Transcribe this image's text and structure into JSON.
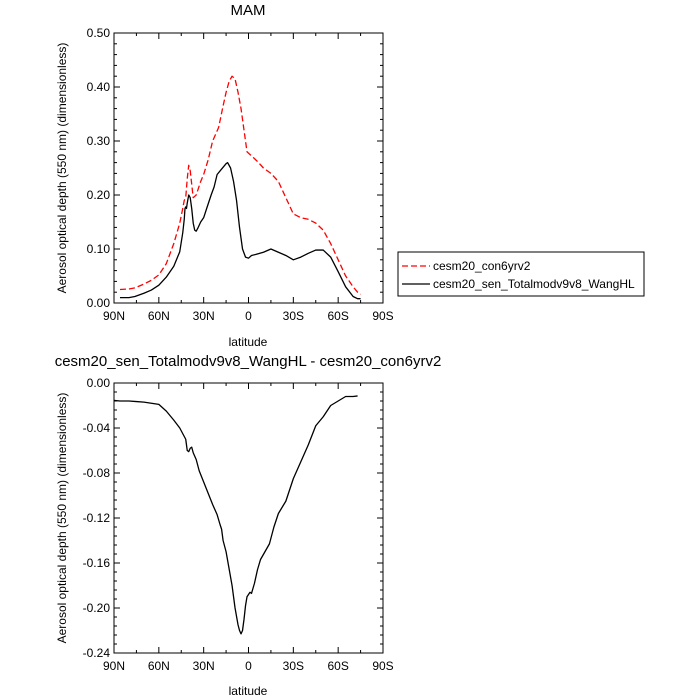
{
  "chart_data": [
    {
      "type": "line",
      "title": "MAM",
      "xlabel": "latitude",
      "ylabel": "Aerosol optical depth (550 nm) (dimensionless)",
      "xlim": [
        90,
        -90
      ],
      "ylim": [
        0,
        0.5
      ],
      "x_ticks": [
        "90N",
        "60N",
        "30N",
        "0",
        "30S",
        "60S",
        "90S"
      ],
      "y_ticks": [
        "0.00",
        "0.10",
        "0.20",
        "0.30",
        "0.40",
        "0.50"
      ],
      "legend": "right",
      "series": [
        {
          "name": "cesm20_con6yrv2",
          "color": "#ff0000",
          "dash": "dashed",
          "points": [
            [
              86,
              0.025
            ],
            [
              80,
              0.026
            ],
            [
              76,
              0.028
            ],
            [
              70,
              0.035
            ],
            [
              65,
              0.042
            ],
            [
              60,
              0.052
            ],
            [
              55,
              0.073
            ],
            [
              50,
              0.11
            ],
            [
              46,
              0.148
            ],
            [
              44,
              0.175
            ],
            [
              43,
              0.19
            ],
            [
              42,
              0.195
            ],
            [
              41,
              0.23
            ],
            [
              40,
              0.255
            ],
            [
              39,
              0.245
            ],
            [
              38,
              0.22
            ],
            [
              37,
              0.195
            ],
            [
              35,
              0.2
            ],
            [
              32,
              0.225
            ],
            [
              30,
              0.238
            ],
            [
              27,
              0.265
            ],
            [
              24,
              0.3
            ],
            [
              20,
              0.325
            ],
            [
              17,
              0.365
            ],
            [
              15,
              0.39
            ],
            [
              13,
              0.41
            ],
            [
              11,
              0.42
            ],
            [
              9,
              0.415
            ],
            [
              7,
              0.39
            ],
            [
              5,
              0.36
            ],
            [
              3,
              0.32
            ],
            [
              1,
              0.28
            ],
            [
              -3,
              0.27
            ],
            [
              -6,
              0.262
            ],
            [
              -10,
              0.25
            ],
            [
              -15,
              0.24
            ],
            [
              -20,
              0.225
            ],
            [
              -25,
              0.195
            ],
            [
              -30,
              0.165
            ],
            [
              -35,
              0.158
            ],
            [
              -40,
              0.155
            ],
            [
              -45,
              0.148
            ],
            [
              -50,
              0.135
            ],
            [
              -55,
              0.11
            ],
            [
              -60,
              0.08
            ],
            [
              -65,
              0.05
            ],
            [
              -70,
              0.03
            ],
            [
              -73,
              0.02
            ],
            [
              -75,
              0.016
            ]
          ]
        },
        {
          "name": "cesm20_sen_Totalmodv9v8_WangHL",
          "color": "#000000",
          "dash": "solid",
          "points": [
            [
              86,
              0.01
            ],
            [
              80,
              0.01
            ],
            [
              76,
              0.012
            ],
            [
              70,
              0.018
            ],
            [
              65,
              0.024
            ],
            [
              60,
              0.033
            ],
            [
              55,
              0.048
            ],
            [
              50,
              0.068
            ],
            [
              46,
              0.095
            ],
            [
              44,
              0.13
            ],
            [
              43,
              0.155
            ],
            [
              42.5,
              0.175
            ],
            [
              42,
              0.178
            ],
            [
              41.5,
              0.175
            ],
            [
              41,
              0.185
            ],
            [
              40,
              0.2
            ],
            [
              39,
              0.195
            ],
            [
              38,
              0.175
            ],
            [
              37,
              0.148
            ],
            [
              36,
              0.135
            ],
            [
              35,
              0.133
            ],
            [
              34,
              0.138
            ],
            [
              32,
              0.15
            ],
            [
              30,
              0.158
            ],
            [
              28,
              0.175
            ],
            [
              25,
              0.2
            ],
            [
              23,
              0.215
            ],
            [
              21,
              0.238
            ],
            [
              18,
              0.248
            ],
            [
              15,
              0.258
            ],
            [
              14,
              0.26
            ],
            [
              12,
              0.25
            ],
            [
              10,
              0.225
            ],
            [
              8,
              0.19
            ],
            [
              6,
              0.14
            ],
            [
              4,
              0.1
            ],
            [
              2,
              0.085
            ],
            [
              0,
              0.083
            ],
            [
              -2,
              0.088
            ],
            [
              -5,
              0.09
            ],
            [
              -10,
              0.094
            ],
            [
              -15,
              0.1
            ],
            [
              -20,
              0.094
            ],
            [
              -25,
              0.088
            ],
            [
              -30,
              0.08
            ],
            [
              -35,
              0.085
            ],
            [
              -40,
              0.092
            ],
            [
              -45,
              0.098
            ],
            [
              -50,
              0.098
            ],
            [
              -55,
              0.085
            ],
            [
              -60,
              0.058
            ],
            [
              -65,
              0.03
            ],
            [
              -70,
              0.012
            ],
            [
              -73,
              0.008
            ],
            [
              -75,
              0.008
            ]
          ]
        }
      ]
    },
    {
      "type": "line",
      "title": "cesm20_sen_Totalmodv9v8_WangHL - cesm20_con6yrv2",
      "xlabel": "latitude",
      "ylabel": "Aerosol optical depth (550 nm) (dimensionless)",
      "xlim": [
        90,
        -90
      ],
      "ylim": [
        -0.24,
        0.0
      ],
      "x_ticks": [
        "90N",
        "60N",
        "30N",
        "0",
        "30S",
        "60S",
        "90S"
      ],
      "y_ticks": [
        "0.00",
        "-0.04",
        "-0.08",
        "-0.12",
        "-0.16",
        "-0.20",
        "-0.24"
      ],
      "series": [
        {
          "color": "#000000",
          "dash": "solid",
          "points": [
            [
              90,
              -0.0155
            ],
            [
              86,
              -0.016
            ],
            [
              80,
              -0.016
            ],
            [
              75,
              -0.0165
            ],
            [
              70,
              -0.017
            ],
            [
              65,
              -0.018
            ],
            [
              60,
              -0.019
            ],
            [
              55,
              -0.025
            ],
            [
              50,
              -0.033
            ],
            [
              46,
              -0.04
            ],
            [
              44,
              -0.045
            ],
            [
              42,
              -0.05
            ],
            [
              41,
              -0.06
            ],
            [
              40,
              -0.061
            ],
            [
              39,
              -0.058
            ],
            [
              38,
              -0.057
            ],
            [
              37,
              -0.062
            ],
            [
              35,
              -0.068
            ],
            [
              33,
              -0.078
            ],
            [
              30,
              -0.088
            ],
            [
              27,
              -0.098
            ],
            [
              24,
              -0.108
            ],
            [
              21,
              -0.117
            ],
            [
              19,
              -0.126
            ],
            [
              18,
              -0.13
            ],
            [
              17,
              -0.14
            ],
            [
              15,
              -0.15
            ],
            [
              13,
              -0.165
            ],
            [
              11,
              -0.18
            ],
            [
              9,
              -0.2
            ],
            [
              7,
              -0.215
            ],
            [
              6,
              -0.22
            ],
            [
              5,
              -0.223
            ],
            [
              4,
              -0.22
            ],
            [
              3,
              -0.21
            ],
            [
              2,
              -0.198
            ],
            [
              1,
              -0.19
            ],
            [
              -1,
              -0.186
            ],
            [
              -2,
              -0.187
            ],
            [
              -4,
              -0.178
            ],
            [
              -6,
              -0.166
            ],
            [
              -8,
              -0.157
            ],
            [
              -11,
              -0.15
            ],
            [
              -14,
              -0.143
            ],
            [
              -17,
              -0.128
            ],
            [
              -20,
              -0.116
            ],
            [
              -25,
              -0.105
            ],
            [
              -30,
              -0.085
            ],
            [
              -35,
              -0.07
            ],
            [
              -40,
              -0.055
            ],
            [
              -45,
              -0.038
            ],
            [
              -50,
              -0.03
            ],
            [
              -55,
              -0.02
            ],
            [
              -60,
              -0.016
            ],
            [
              -65,
              -0.012
            ],
            [
              -70,
              -0.012
            ],
            [
              -73,
              -0.0115
            ]
          ]
        }
      ]
    }
  ]
}
